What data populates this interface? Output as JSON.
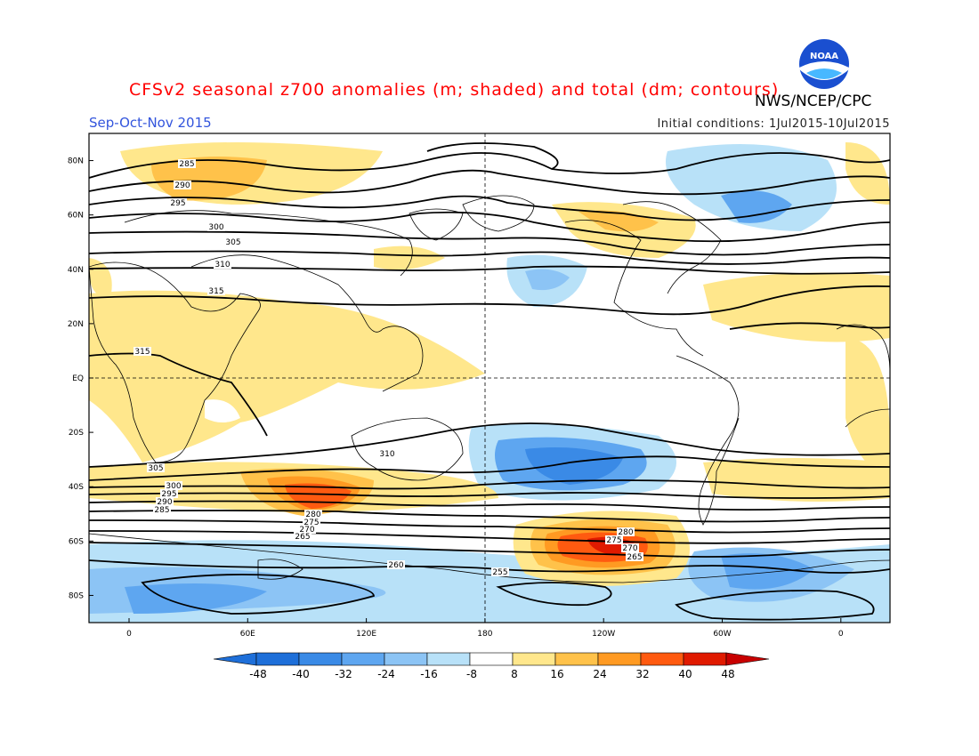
{
  "title": "CFSv2 seasonal z700 anomalies (m; shaded) and total (dm; contours)",
  "season": "Sep-Oct-Nov 2015",
  "agency": "NWS/NCEP/CPC",
  "initial_conditions": "Initial conditions: 1Jul2015-10Jul2015",
  "logo_text": "NOAA",
  "lat_labels": [
    "80N",
    "60N",
    "40N",
    "20N",
    "EQ",
    "20S",
    "40S",
    "60S",
    "80S"
  ],
  "lon_labels": [
    "0",
    "60E",
    "120E",
    "180",
    "120W",
    "60W",
    "0"
  ],
  "colorbar": {
    "labels": [
      "-48",
      "-40",
      "-32",
      "-24",
      "-16",
      "-8",
      "8",
      "16",
      "24",
      "32",
      "40",
      "48"
    ],
    "colors": [
      "#1e6fd9",
      "#3a8ae6",
      "#5ea6f0",
      "#8cc4f5",
      "#b8e1f8",
      "#ffffff",
      "#ffe78c",
      "#ffc24a",
      "#ff9a22",
      "#ff5a10",
      "#e01a00"
    ],
    "low_end_color": "#1e6fd9",
    "high_end_color": "#c80000"
  },
  "contour_labels": {
    "north": [
      "285",
      "290",
      "295",
      "300",
      "305",
      "310",
      "315"
    ],
    "south": [
      "315",
      "310",
      "305",
      "300",
      "295",
      "290",
      "285",
      "280",
      "275",
      "270",
      "265",
      "260",
      "255"
    ],
    "pacific_high_center": [
      "280",
      "275",
      "270",
      "265"
    ]
  },
  "map_colors": {
    "positive_anomaly": "#ffd77a",
    "strong_positive": "#ff6a1a",
    "negative_anomaly": "#8cc4f5",
    "strong_negative": "#3a8ae6",
    "contour": "#000000",
    "coastline": "#000000"
  }
}
